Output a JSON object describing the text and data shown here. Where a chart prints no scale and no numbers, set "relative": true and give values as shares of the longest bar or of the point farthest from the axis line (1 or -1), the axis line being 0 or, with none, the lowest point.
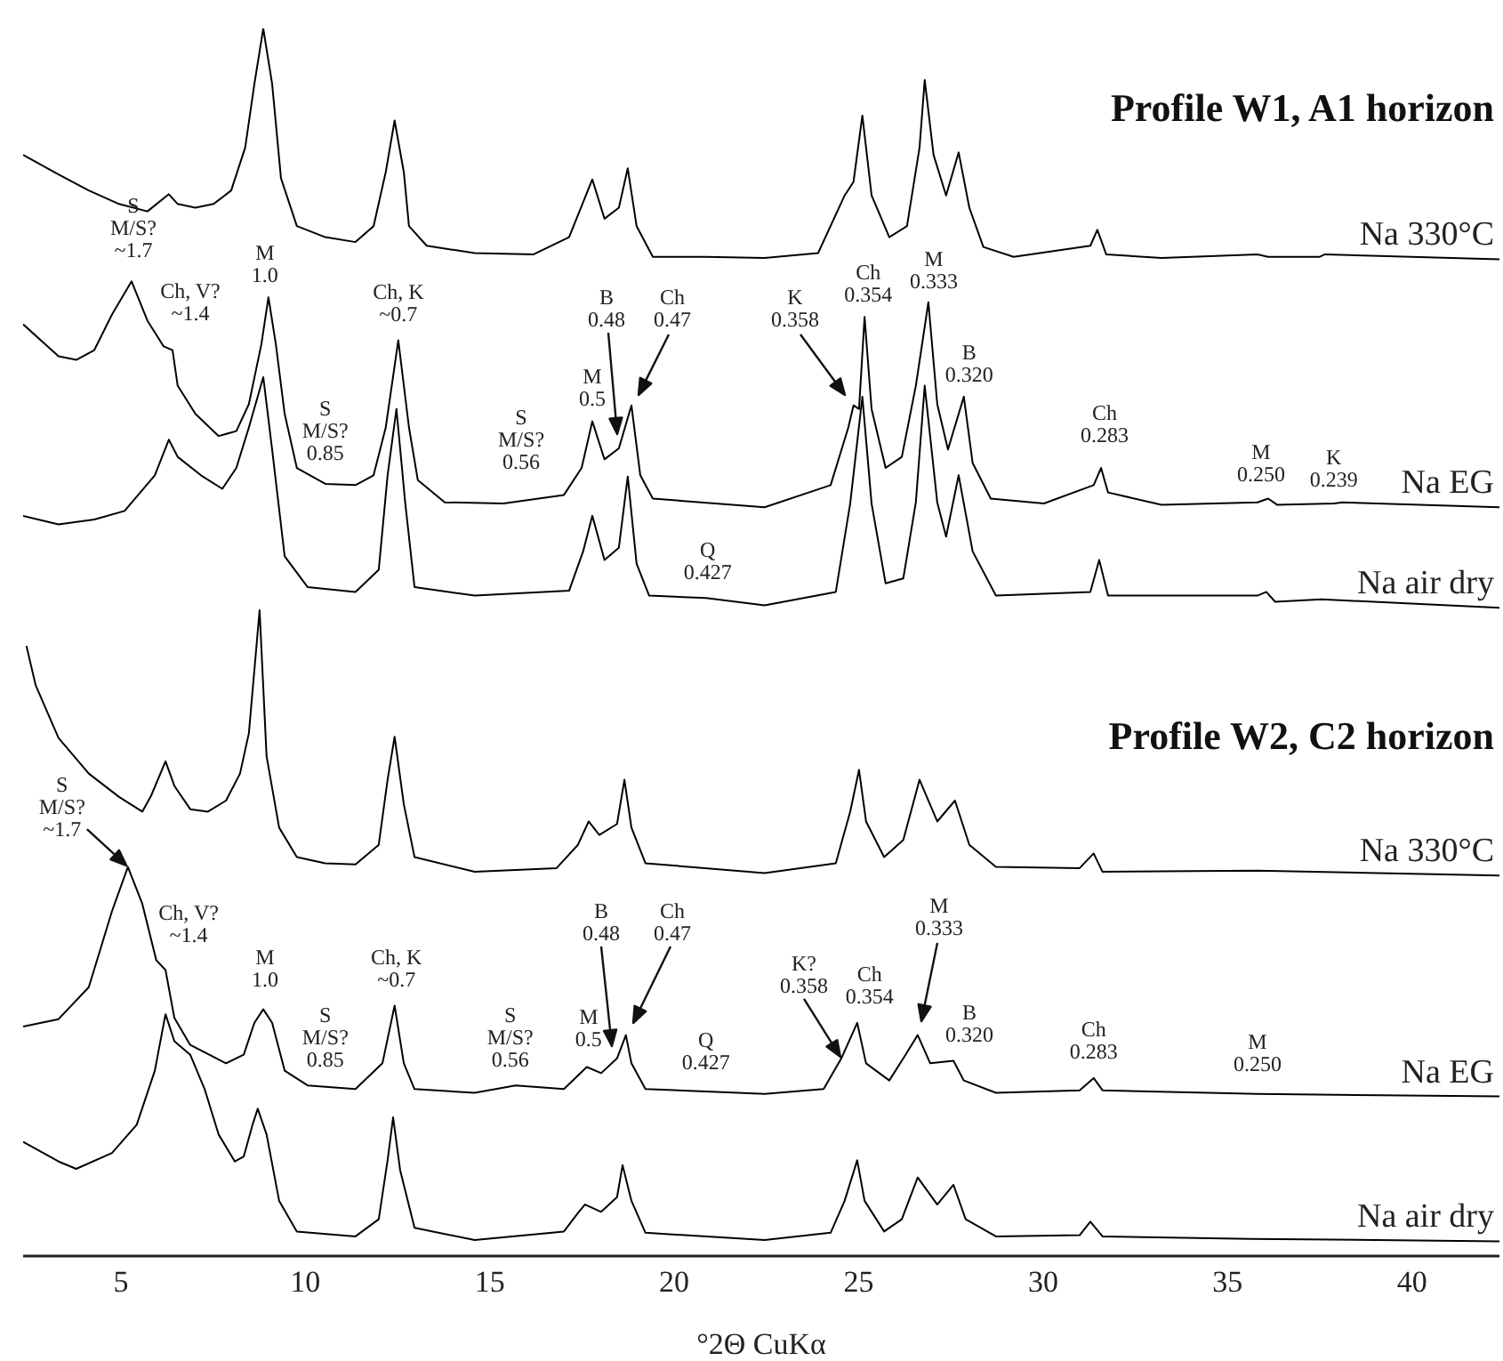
{
  "chart_data": {
    "type": "line",
    "relative": true,
    "xlabel": "°2Θ CuKα",
    "xlim": [
      2.35,
      42.37
    ],
    "xticks": [
      5,
      10,
      15,
      20,
      25,
      30,
      35,
      40
    ],
    "series": [
      {
        "name": "Na 330°C",
        "color": "#000000",
        "x": [
          2.35,
          3.31,
          4.13,
          4.95,
          5.72,
          6.3,
          6.54,
          7.02,
          7.51,
          7.99,
          8.37,
          8.62,
          8.86,
          9.1,
          9.34,
          9.77,
          10.54,
          11.36,
          11.85,
          12.18,
          12.42,
          12.67,
          12.81,
          13.29,
          14.59,
          16.19,
          17.15,
          17.78,
          18.11,
          18.5,
          18.74,
          18.98,
          19.42,
          20.86,
          22.45,
          23.9,
          24.62,
          24.86,
          25.1,
          25.35,
          25.83,
          26.31,
          26.65,
          26.79,
          27.03,
          27.37,
          27.71,
          28.0,
          28.38,
          29.2,
          31.28,
          31.47,
          31.71,
          33.21,
          35.81,
          36.1,
          37.5,
          37.64,
          42.37
        ],
        "values": [
          0.897,
          0.881,
          0.868,
          0.857,
          0.851,
          0.865,
          0.857,
          0.854,
          0.857,
          0.868,
          0.903,
          0.955,
          1.0,
          0.955,
          0.878,
          0.839,
          0.83,
          0.826,
          0.839,
          0.883,
          0.925,
          0.883,
          0.839,
          0.823,
          0.817,
          0.816,
          0.83,
          0.877,
          0.845,
          0.854,
          0.886,
          0.839,
          0.814,
          0.814,
          0.813,
          0.817,
          0.864,
          0.875,
          0.929,
          0.864,
          0.83,
          0.839,
          0.903,
          0.958,
          0.897,
          0.864,
          0.899,
          0.854,
          0.822,
          0.814,
          0.823,
          0.836,
          0.816,
          0.813,
          0.816,
          0.814,
          0.814,
          0.816,
          0.812
        ]
      },
      {
        "name": "Na EG",
        "color": "#000000",
        "x": [
          2.35,
          3.31,
          3.79,
          4.28,
          4.76,
          5.29,
          5.72,
          6.16,
          6.4,
          6.54,
          7.02,
          7.65,
          8.13,
          8.47,
          8.81,
          9.0,
          9.2,
          9.44,
          9.77,
          10.54,
          11.36,
          11.85,
          12.18,
          12.52,
          12.81,
          13.05,
          13.78,
          15.37,
          17.01,
          17.49,
          17.78,
          18.11,
          18.5,
          18.84,
          19.08,
          19.42,
          22.45,
          24.24,
          24.72,
          24.86,
          25.01,
          25.16,
          25.35,
          25.73,
          26.17,
          26.55,
          26.89,
          27.13,
          27.42,
          27.85,
          28.09,
          28.58,
          30.02,
          31.37,
          31.57,
          31.76,
          33.21,
          35.81,
          36.1,
          36.34,
          37.88,
          38.12,
          42.37
        ],
        "values": [
          0.759,
          0.733,
          0.73,
          0.738,
          0.767,
          0.794,
          0.762,
          0.741,
          0.738,
          0.709,
          0.686,
          0.668,
          0.672,
          0.694,
          0.743,
          0.781,
          0.743,
          0.686,
          0.642,
          0.629,
          0.628,
          0.636,
          0.675,
          0.746,
          0.675,
          0.632,
          0.614,
          0.613,
          0.62,
          0.642,
          0.68,
          0.649,
          0.658,
          0.693,
          0.636,
          0.617,
          0.61,
          0.628,
          0.675,
          0.693,
          0.69,
          0.765,
          0.69,
          0.642,
          0.651,
          0.709,
          0.777,
          0.694,
          0.657,
          0.7,
          0.646,
          0.617,
          0.613,
          0.628,
          0.642,
          0.622,
          0.612,
          0.614,
          0.617,
          0.612,
          0.613,
          0.614,
          0.61
        ]
      },
      {
        "name": "Na air dry",
        "color": "#000000",
        "x": [
          2.35,
          3.31,
          4.28,
          5.1,
          5.92,
          6.3,
          6.54,
          7.17,
          7.75,
          8.13,
          8.47,
          8.86,
          9.1,
          9.44,
          10.06,
          11.36,
          11.99,
          12.23,
          12.47,
          12.71,
          12.96,
          14.59,
          17.15,
          17.53,
          17.78,
          18.11,
          18.5,
          18.74,
          18.98,
          19.32,
          20.86,
          22.45,
          24.38,
          24.77,
          25.1,
          25.35,
          25.73,
          26.21,
          26.55,
          26.79,
          27.13,
          27.37,
          27.71,
          28.09,
          28.72,
          31.28,
          31.52,
          31.76,
          35.81,
          36.05,
          36.29,
          37.55,
          42.37
        ],
        "values": [
          0.603,
          0.596,
          0.6,
          0.607,
          0.636,
          0.665,
          0.651,
          0.636,
          0.625,
          0.642,
          0.675,
          0.716,
          0.657,
          0.57,
          0.545,
          0.541,
          0.559,
          0.636,
          0.69,
          0.613,
          0.545,
          0.538,
          0.542,
          0.574,
          0.603,
          0.567,
          0.577,
          0.635,
          0.564,
          0.538,
          0.536,
          0.53,
          0.541,
          0.613,
          0.7,
          0.613,
          0.548,
          0.552,
          0.614,
          0.709,
          0.614,
          0.586,
          0.636,
          0.574,
          0.538,
          0.541,
          0.567,
          0.538,
          0.538,
          0.541,
          0.533,
          0.535,
          0.528
        ]
      },
      {
        "name": "Na 330°C",
        "color": "#000000",
        "x": [
          2.44,
          2.69,
          3.31,
          4.13,
          4.95,
          5.58,
          5.82,
          6.21,
          6.45,
          6.88,
          7.36,
          7.85,
          8.23,
          8.47,
          8.76,
          8.95,
          9.29,
          9.77,
          10.54,
          11.36,
          11.99,
          12.23,
          12.42,
          12.67,
          12.96,
          14.59,
          16.81,
          17.39,
          17.68,
          17.97,
          18.45,
          18.65,
          18.84,
          19.22,
          22.45,
          24.38,
          24.77,
          25.01,
          25.2,
          25.69,
          26.21,
          26.65,
          27.13,
          27.61,
          28.0,
          28.72,
          30.99,
          31.37,
          31.61,
          35.81,
          42.37
        ],
        "values": [
          0.497,
          0.465,
          0.422,
          0.393,
          0.374,
          0.362,
          0.375,
          0.403,
          0.383,
          0.364,
          0.362,
          0.371,
          0.393,
          0.426,
          0.526,
          0.407,
          0.349,
          0.325,
          0.32,
          0.319,
          0.335,
          0.388,
          0.423,
          0.368,
          0.325,
          0.313,
          0.316,
          0.335,
          0.354,
          0.343,
          0.352,
          0.388,
          0.349,
          0.32,
          0.312,
          0.32,
          0.362,
          0.396,
          0.354,
          0.325,
          0.339,
          0.388,
          0.354,
          0.371,
          0.335,
          0.317,
          0.316,
          0.328,
          0.313,
          0.314,
          0.31
        ]
      },
      {
        "name": "Na EG",
        "color": "#000000",
        "x": [
          2.35,
          3.31,
          4.13,
          4.76,
          5.19,
          5.58,
          5.96,
          6.21,
          6.45,
          6.88,
          7.85,
          8.33,
          8.62,
          8.86,
          9.1,
          9.44,
          10.06,
          11.36,
          12.09,
          12.42,
          12.67,
          12.96,
          14.59,
          15.7,
          17.01,
          17.63,
          18.02,
          18.45,
          18.69,
          18.84,
          19.22,
          20.86,
          22.45,
          24.05,
          24.53,
          24.96,
          25.2,
          25.83,
          26.21,
          26.6,
          26.94,
          27.57,
          27.85,
          28.72,
          30.99,
          31.37,
          31.61,
          35.81,
          42.37
        ],
        "values": [
          0.187,
          0.193,
          0.219,
          0.281,
          0.317,
          0.287,
          0.241,
          0.233,
          0.194,
          0.172,
          0.157,
          0.164,
          0.19,
          0.201,
          0.19,
          0.151,
          0.139,
          0.136,
          0.157,
          0.204,
          0.157,
          0.136,
          0.133,
          0.139,
          0.136,
          0.154,
          0.149,
          0.161,
          0.18,
          0.157,
          0.136,
          0.134,
          0.132,
          0.136,
          0.161,
          0.19,
          0.157,
          0.143,
          0.161,
          0.18,
          0.157,
          0.159,
          0.143,
          0.133,
          0.135,
          0.145,
          0.135,
          0.132,
          0.13
        ]
      },
      {
        "name": "Na air dry",
        "color": "#000000",
        "x": [
          2.35,
          3.31,
          3.79,
          4.76,
          5.43,
          5.92,
          6.21,
          6.45,
          6.88,
          7.27,
          7.65,
          8.09,
          8.33,
          8.57,
          8.71,
          8.95,
          9.29,
          9.77,
          11.36,
          11.99,
          12.23,
          12.38,
          12.57,
          12.96,
          14.59,
          17.01,
          17.39,
          17.58,
          18.02,
          18.45,
          18.6,
          18.84,
          19.22,
          22.45,
          24.24,
          24.62,
          24.96,
          25.16,
          25.69,
          26.17,
          26.6,
          27.13,
          27.57,
          27.9,
          28.72,
          30.99,
          31.28,
          31.61,
          35.62,
          42.37
        ],
        "values": [
          0.093,
          0.077,
          0.071,
          0.084,
          0.107,
          0.151,
          0.197,
          0.175,
          0.164,
          0.136,
          0.099,
          0.077,
          0.081,
          0.107,
          0.12,
          0.099,
          0.045,
          0.02,
          0.016,
          0.03,
          0.078,
          0.113,
          0.07,
          0.023,
          0.013,
          0.02,
          0.035,
          0.042,
          0.036,
          0.048,
          0.074,
          0.045,
          0.019,
          0.013,
          0.019,
          0.045,
          0.078,
          0.045,
          0.02,
          0.03,
          0.064,
          0.042,
          0.058,
          0.03,
          0.016,
          0.017,
          0.028,
          0.016,
          0.014,
          0.012
        ]
      }
    ],
    "annotations": [
      "Profile W1, A1 horizon",
      {
        "text": "S\nM/S?\n~1.7",
        "x": 5.29,
        "y": 0.794
      },
      {
        "text": "M\n1.0",
        "x": 9.0,
        "y": 0.781
      },
      {
        "text": "Ch, V?\n~1.4",
        "x": 6.4,
        "y": 0.738
      },
      {
        "text": "Ch, K\n~0.7",
        "x": 12.52,
        "y": 0.746
      },
      {
        "text": "S\nM/S?\n0.85",
        "x": 10.54,
        "y": 0.629
      },
      {
        "text": "S\nM/S?\n0.56",
        "x": 15.37,
        "y": 0.613
      },
      {
        "text": "M\n0.5",
        "x": 17.78,
        "y": 0.68
      },
      "B\n0.48",
      "Ch\n0.47",
      {
        "text": "Q\n0.427",
        "x": 20.86,
        "y": 0.536
      },
      "K\n0.358",
      {
        "text": "Ch\n0.354",
        "x": 25.16,
        "y": 0.765
      },
      {
        "text": "M\n0.333",
        "x": 26.89,
        "y": 0.777
      },
      {
        "text": "B\n0.320",
        "x": 27.85,
        "y": 0.7
      },
      {
        "text": "Ch\n0.283",
        "x": 31.57,
        "y": 0.642
      },
      {
        "text": "M\n0.250",
        "x": 36.1,
        "y": 0.614
      },
      {
        "text": "K\n0.239",
        "x": 37.88,
        "y": 0.613
      },
      "Profile W2, C2 horizon",
      {
        "text": "S\nM/S?\n~1.7",
        "x": 5.19,
        "y": 0.317
      },
      {
        "text": "Ch, V?\n~1.4",
        "x": 6.21,
        "y": 0.233
      },
      {
        "text": "M\n1.0",
        "x": 8.86,
        "y": 0.201
      },
      {
        "text": "Ch, K\n~0.7",
        "x": 12.42,
        "y": 0.204
      },
      {
        "text": "S\nM/S?\n0.85",
        "x": 10.06,
        "y": 0.139
      },
      {
        "text": "S\nM/S?\n0.56",
        "x": 15.7,
        "y": 0.139
      },
      {
        "text": "M\n0.5",
        "x": 17.63,
        "y": 0.154
      },
      "B\n0.48",
      "Ch\n0.47",
      {
        "text": "Q\n0.427",
        "x": 20.86,
        "y": 0.134
      },
      {
        "text": "K?\n0.358",
        "x": 24.53,
        "y": 0.161
      },
      {
        "text": "Ch\n0.354",
        "x": 24.96,
        "y": 0.19
      },
      "M\n0.333",
      {
        "text": "B\n0.320",
        "x": 27.57,
        "y": 0.159
      },
      {
        "text": "Ch\n0.283",
        "x": 31.37,
        "y": 0.145
      },
      {
        "text": "M\n0.250",
        "x": 35.81,
        "y": 0.132
      }
    ]
  }
}
